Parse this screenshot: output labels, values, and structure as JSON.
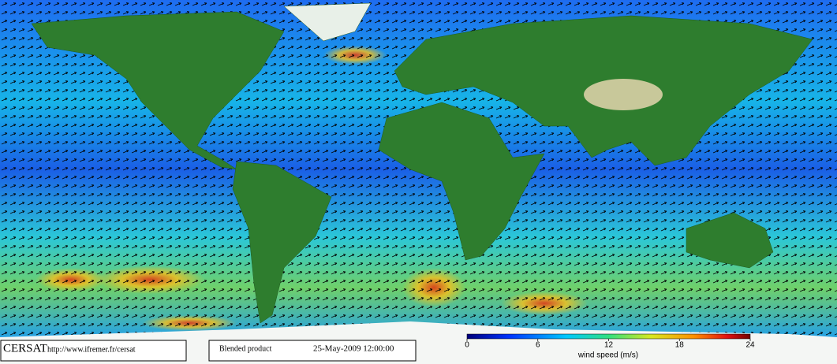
{
  "footer": {
    "logo": "CERSAT",
    "url": "http://www.ifremer.fr/cersat",
    "product": "Blended product",
    "date": "25-May-2009 12:00:00"
  },
  "colorbar": {
    "label": "wind speed (m/s)",
    "lim": [
      0,
      24
    ],
    "ticks": [
      0,
      6,
      12,
      18,
      24
    ]
  }
}
